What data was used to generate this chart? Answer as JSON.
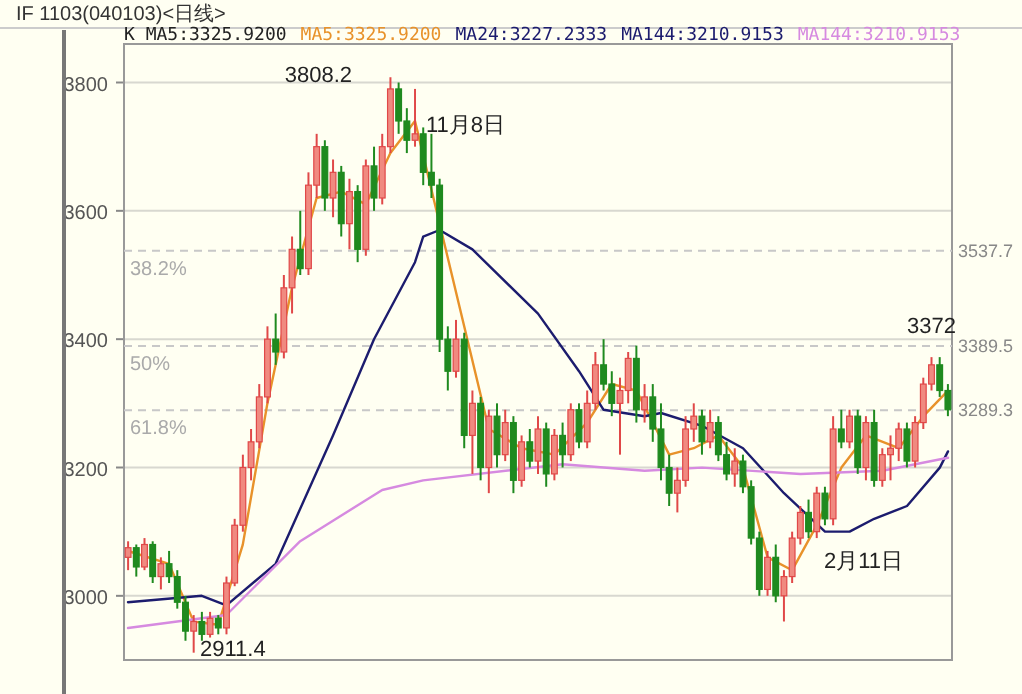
{
  "chart_data": {
    "type": "candlestick",
    "title": "IF   1103(040103)<日线>",
    "subtitle": "K  MA5:3325.9200",
    "categories": [
      null,
      null,
      null,
      null,
      null,
      null,
      null,
      null,
      null,
      null,
      null,
      null,
      null,
      null,
      null,
      null,
      null,
      null,
      null,
      null,
      null,
      null,
      null,
      null,
      null,
      null,
      null,
      null,
      null,
      null,
      null,
      null,
      null,
      null,
      null,
      null,
      null,
      null,
      null,
      null,
      null,
      null,
      null,
      null,
      null,
      null,
      null,
      null,
      null,
      null,
      null,
      null,
      null,
      null,
      null,
      null,
      null,
      null,
      null,
      null,
      null,
      null,
      null,
      null,
      null,
      null,
      null,
      null,
      null,
      null,
      null,
      null,
      null,
      null,
      null,
      null,
      null,
      null,
      null,
      null,
      null,
      null,
      null,
      null,
      null,
      null,
      null,
      null,
      null,
      null,
      null,
      null,
      null,
      null,
      null,
      null,
      null,
      null,
      null,
      null,
      null
    ],
    "ohlc": [
      [
        3060,
        3085,
        3040,
        3075
      ],
      [
        3075,
        3080,
        3030,
        3045
      ],
      [
        3045,
        3090,
        3040,
        3080
      ],
      [
        3080,
        3085,
        3020,
        3030
      ],
      [
        3030,
        3060,
        3010,
        3050
      ],
      [
        3050,
        3070,
        3020,
        3030
      ],
      [
        3030,
        3040,
        2980,
        2990
      ],
      [
        2990,
        3000,
        2930,
        2945
      ],
      [
        2945,
        2970,
        2911.4,
        2960
      ],
      [
        2960,
        2975,
        2930,
        2940
      ],
      [
        2940,
        2975,
        2935,
        2965
      ],
      [
        2965,
        2970,
        2940,
        2950
      ],
      [
        2950,
        3030,
        2940,
        3020
      ],
      [
        3020,
        3120,
        3015,
        3110
      ],
      [
        3110,
        3220,
        3100,
        3200
      ],
      [
        3200,
        3260,
        3180,
        3240
      ],
      [
        3240,
        3330,
        3230,
        3310
      ],
      [
        3310,
        3420,
        3300,
        3400
      ],
      [
        3400,
        3440,
        3360,
        3380
      ],
      [
        3380,
        3500,
        3370,
        3480
      ],
      [
        3480,
        3560,
        3440,
        3540
      ],
      [
        3540,
        3600,
        3500,
        3510
      ],
      [
        3510,
        3660,
        3500,
        3640
      ],
      [
        3640,
        3720,
        3620,
        3700
      ],
      [
        3700,
        3710,
        3600,
        3620
      ],
      [
        3620,
        3680,
        3590,
        3660
      ],
      [
        3660,
        3670,
        3560,
        3580
      ],
      [
        3580,
        3650,
        3540,
        3630
      ],
      [
        3630,
        3640,
        3520,
        3540
      ],
      [
        3540,
        3680,
        3530,
        3670
      ],
      [
        3670,
        3700,
        3600,
        3620
      ],
      [
        3620,
        3720,
        3610,
        3700
      ],
      [
        3700,
        3808.2,
        3690,
        3790
      ],
      [
        3790,
        3800,
        3720,
        3740
      ],
      [
        3740,
        3760,
        3690,
        3710
      ],
      [
        3710,
        3790,
        3700,
        3720
      ],
      [
        3720,
        3730,
        3640,
        3660
      ],
      [
        3660,
        3720,
        3620,
        3640
      ],
      [
        3640,
        3650,
        3380,
        3400
      ],
      [
        3400,
        3420,
        3320,
        3350
      ],
      [
        3350,
        3430,
        3340,
        3400
      ],
      [
        3400,
        3410,
        3230,
        3250
      ],
      [
        3250,
        3320,
        3190,
        3300
      ],
      [
        3300,
        3310,
        3180,
        3200
      ],
      [
        3200,
        3290,
        3160,
        3280
      ],
      [
        3280,
        3300,
        3200,
        3220
      ],
      [
        3220,
        3290,
        3210,
        3270
      ],
      [
        3270,
        3280,
        3160,
        3180
      ],
      [
        3180,
        3250,
        3170,
        3240
      ],
      [
        3240,
        3260,
        3200,
        3210
      ],
      [
        3210,
        3280,
        3190,
        3260
      ],
      [
        3260,
        3270,
        3170,
        3190
      ],
      [
        3190,
        3260,
        3180,
        3250
      ],
      [
        3250,
        3270,
        3200,
        3220
      ],
      [
        3220,
        3300,
        3210,
        3290
      ],
      [
        3290,
        3300,
        3230,
        3240
      ],
      [
        3240,
        3320,
        3230,
        3300
      ],
      [
        3300,
        3380,
        3290,
        3360
      ],
      [
        3360,
        3400,
        3320,
        3330
      ],
      [
        3330,
        3350,
        3280,
        3300
      ],
      [
        3300,
        3340,
        3220,
        3320
      ],
      [
        3320,
        3380,
        3300,
        3370
      ],
      [
        3370,
        3390,
        3270,
        3290
      ],
      [
        3290,
        3330,
        3270,
        3310
      ],
      [
        3310,
        3330,
        3240,
        3260
      ],
      [
        3260,
        3300,
        3180,
        3200
      ],
      [
        3200,
        3220,
        3140,
        3160
      ],
      [
        3160,
        3200,
        3130,
        3180
      ],
      [
        3180,
        3280,
        3170,
        3260
      ],
      [
        3260,
        3300,
        3240,
        3280
      ],
      [
        3280,
        3290,
        3220,
        3240
      ],
      [
        3240,
        3290,
        3230,
        3270
      ],
      [
        3270,
        3280,
        3210,
        3220
      ],
      [
        3220,
        3240,
        3180,
        3190
      ],
      [
        3190,
        3230,
        3170,
        3210
      ],
      [
        3210,
        3220,
        3160,
        3170
      ],
      [
        3170,
        3180,
        3080,
        3090
      ],
      [
        3090,
        3100,
        3000,
        3010
      ],
      [
        3010,
        3070,
        3000,
        3060
      ],
      [
        3060,
        3080,
        2990,
        3000
      ],
      [
        3000,
        3040,
        2960,
        3030
      ],
      [
        3030,
        3100,
        3020,
        3090
      ],
      [
        3090,
        3140,
        3080,
        3130
      ],
      [
        3130,
        3150,
        3090,
        3100
      ],
      [
        3100,
        3170,
        3090,
        3160
      ],
      [
        3160,
        3170,
        3110,
        3120
      ],
      [
        3120,
        3280,
        3110,
        3260
      ],
      [
        3260,
        3290,
        3230,
        3240
      ],
      [
        3240,
        3290,
        3230,
        3280
      ],
      [
        3280,
        3290,
        3190,
        3200
      ],
      [
        3200,
        3280,
        3180,
        3270
      ],
      [
        3270,
        3290,
        3170,
        3180
      ],
      [
        3180,
        3230,
        3170,
        3220
      ],
      [
        3220,
        3250,
        3180,
        3230
      ],
      [
        3230,
        3270,
        3210,
        3260
      ],
      [
        3260,
        3270,
        3200,
        3210
      ],
      [
        3210,
        3280,
        3200,
        3270
      ],
      [
        3270,
        3340,
        3260,
        3330
      ],
      [
        3330,
        3372,
        3320,
        3360
      ],
      [
        3360,
        3372,
        3310,
        3320
      ],
      [
        3320,
        3330,
        3280,
        3290
      ]
    ],
    "series": [
      {
        "name": "MA5:3325.9200",
        "type": "line",
        "color": "#e8922a",
        "values": [
          3070,
          null,
          null,
          null,
          null,
          3050,
          null,
          null,
          2960,
          null,
          null,
          2955,
          null,
          null,
          3080,
          null,
          null,
          3300,
          null,
          null,
          3480,
          null,
          null,
          3620,
          null,
          null,
          3630,
          null,
          null,
          3610,
          null,
          null,
          3690,
          null,
          null,
          3740,
          null,
          null,
          null,
          null,
          null,
          null,
          null,
          null,
          3260,
          null,
          null,
          null,
          3230,
          null,
          null,
          null,
          3220,
          null,
          null,
          null,
          3270,
          null,
          null,
          3330,
          null,
          null,
          3320,
          null,
          null,
          null,
          3220,
          null,
          null,
          3230,
          null,
          null,
          3250,
          null,
          null,
          3200,
          null,
          null,
          3060,
          null,
          null,
          3040,
          null,
          null,
          3110,
          null,
          null,
          3200,
          null,
          null,
          3250,
          null,
          null,
          null,
          3230,
          null,
          null,
          3280,
          null,
          null,
          3320
        ]
      },
      {
        "name": "MA24:3227.2333",
        "type": "line",
        "color": "#1c1c6e",
        "values": [
          2990,
          null,
          null,
          null,
          null,
          null,
          null,
          null,
          null,
          3000,
          null,
          null,
          2985,
          null,
          null,
          null,
          null,
          null,
          3050,
          null,
          null,
          null,
          null,
          null,
          null,
          3250,
          null,
          null,
          null,
          null,
          3400,
          null,
          null,
          null,
          null,
          3520,
          3560,
          null,
          3570,
          null,
          null,
          null,
          3540,
          null,
          null,
          null,
          null,
          null,
          null,
          null,
          3440,
          null,
          null,
          null,
          null,
          3350,
          null,
          null,
          3290,
          null,
          null,
          null,
          null,
          3280,
          null,
          3285,
          null,
          null,
          null,
          null,
          3265,
          null,
          null,
          null,
          null,
          3230,
          null,
          null,
          null,
          null,
          3160,
          null,
          null,
          null,
          null,
          3100,
          null,
          null,
          3100,
          null,
          null,
          3120,
          null,
          null,
          null,
          3140,
          null,
          null,
          null,
          3200,
          3225
        ]
      },
      {
        "name": "MA144:3210.9153",
        "type": "line",
        "color": "#d68ae0",
        "values": [
          2950,
          null,
          null,
          null,
          null,
          null,
          null,
          null,
          null,
          null,
          null,
          null,
          2970,
          null,
          null,
          null,
          null,
          null,
          null,
          null,
          null,
          3085,
          null,
          null,
          null,
          null,
          null,
          null,
          null,
          null,
          null,
          3165,
          null,
          null,
          null,
          null,
          3180,
          null,
          null,
          null,
          null,
          null,
          null,
          null,
          null,
          null,
          null,
          null,
          null,
          null,
          null,
          null,
          null,
          3205,
          null,
          null,
          null,
          null,
          null,
          null,
          null,
          null,
          null,
          3195,
          null,
          null,
          null,
          null,
          null,
          null,
          3200,
          null,
          null,
          null,
          null,
          null,
          null,
          null,
          null,
          null,
          null,
          null,
          3190,
          null,
          null,
          null,
          null,
          null,
          null,
          null,
          null,
          null,
          3195,
          null,
          null,
          null,
          null,
          null,
          null,
          null,
          3215
        ]
      }
    ],
    "ylim": [
      2900,
      3860
    ],
    "yticks": [
      3000,
      3200,
      3400,
      3600,
      3800
    ],
    "grid": "y",
    "legend": "top",
    "tick_labels": "y",
    "ref_lines": [
      {
        "axis": "y",
        "value": 3537.7,
        "label": "3537.7",
        "line_style": "dashed"
      },
      {
        "axis": "y",
        "value": 3389.5,
        "label": "3389.5",
        "line_style": "dashed"
      },
      {
        "axis": "y",
        "value": 3289.3,
        "label": "3289.3",
        "line_style": "dashed"
      }
    ],
    "annotations": [
      "MA144:3210.9153",
      "3808.2",
      "2911.4",
      "11月8日",
      "2月11日",
      "38.2%",
      "50%",
      "61.8%",
      {
        "text": "3372",
        "y": 3372
      }
    ]
  }
}
